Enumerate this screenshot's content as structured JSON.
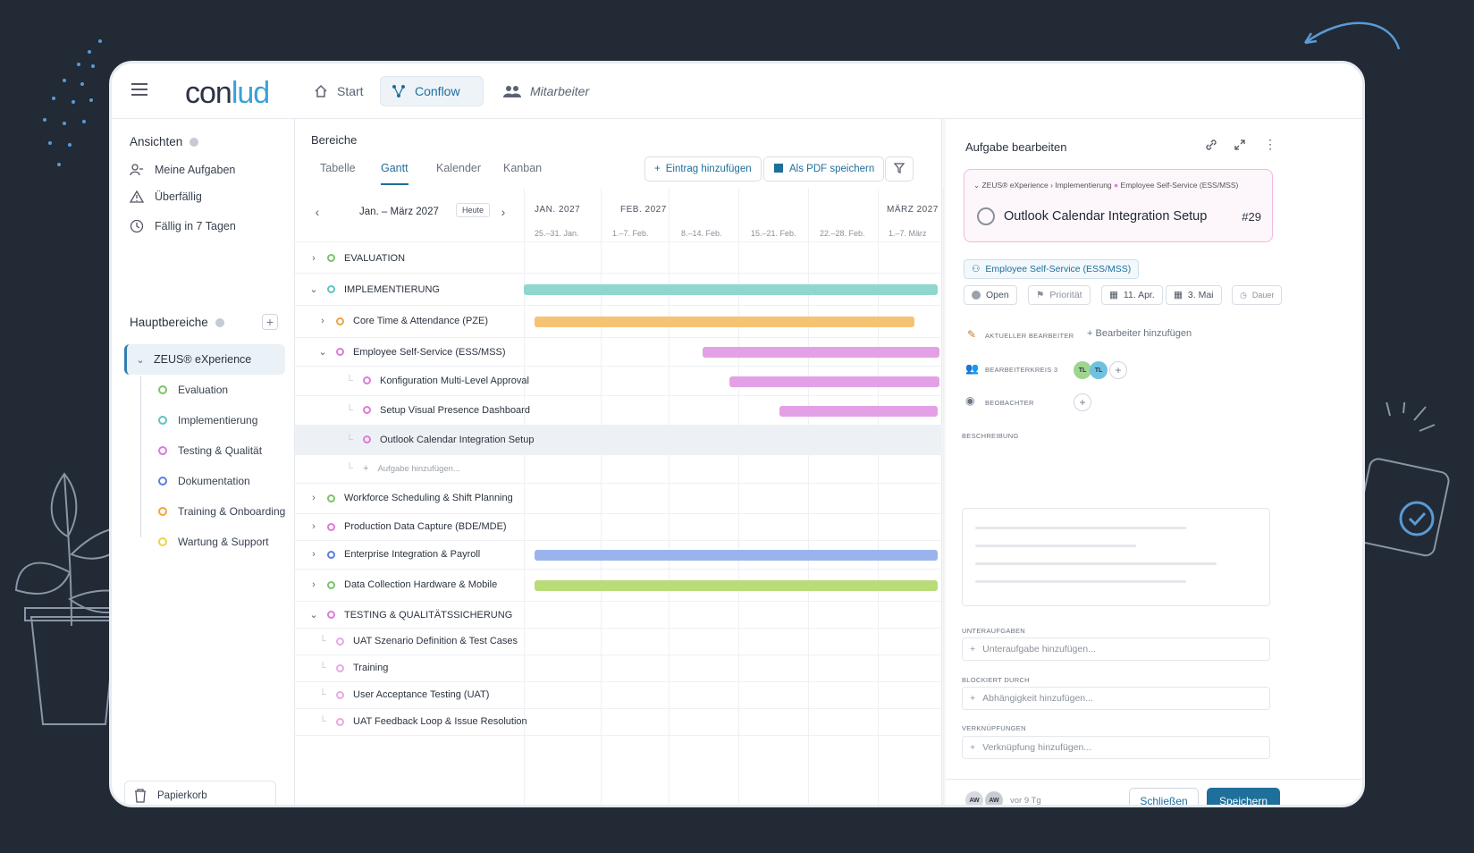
{
  "app": {
    "logo_prefix": "con",
    "logo_accent": "lud",
    "nav": {
      "start": "Start",
      "conflow": "Conflow",
      "mitarbeiter": "Mitarbeiter"
    }
  },
  "sidebar": {
    "ansichten_title": "Ansichten",
    "views": [
      "Meine Aufgaben",
      "Überfällig",
      "Fällig in 7 Tagen"
    ],
    "hauptbereiche_title": "Hauptbereiche",
    "zeus": "ZEUS® eXperience",
    "areas": [
      {
        "label": "Evaluation",
        "color": "#7cc36a"
      },
      {
        "label": "Implementierung",
        "color": "#5ec4c0"
      },
      {
        "label": "Testing & Qualität",
        "color": "#e07ad8"
      },
      {
        "label": "Dokumentation",
        "color": "#5b7fe0"
      },
      {
        "label": "Training & Onboarding",
        "color": "#f2a444"
      },
      {
        "label": "Wartung & Support",
        "color": "#f0d04a"
      }
    ],
    "trash": "Papierkorb"
  },
  "main": {
    "title": "Bereiche",
    "tabs": [
      "Tabelle",
      "Gantt",
      "Kalender",
      "Kanban"
    ],
    "add_entry": "Eintrag hinzufügen",
    "save_pdf": "Als PDF speichern",
    "range": "Jan. – März 2027",
    "today": "Heute",
    "months": [
      "JAN. 2027",
      "FEB. 2027",
      "MÄRZ 2027"
    ],
    "weeks": [
      "25.–31. Jan.",
      "1.–7. Feb.",
      "8.–14. Feb.",
      "15.–21. Feb.",
      "22.–28. Feb.",
      "1.–7. März"
    ],
    "rows": [
      {
        "label": "EVALUATION",
        "chev": "›",
        "color": "#7cc36a",
        "indent": 0
      },
      {
        "label": "IMPLEMENTIERUNG",
        "chev": "⌄",
        "color": "#5ec4c0",
        "indent": 0
      },
      {
        "label": "Core Time & Attendance (PZE)",
        "chev": "›",
        "color": "#f2a444",
        "indent": 1
      },
      {
        "label": "Employee Self-Service (ESS/MSS)",
        "chev": "⌄",
        "color": "#e07ad8",
        "indent": 1
      },
      {
        "label": "Konfiguration Multi-Level Approval",
        "chev": "",
        "color": "#e07ad8",
        "indent": 2
      },
      {
        "label": "Setup Visual Presence Dashboard",
        "chev": "",
        "color": "#e07ad8",
        "indent": 2
      },
      {
        "label": "Outlook Calendar Integration Setup",
        "chev": "",
        "color": "#e07ad8",
        "indent": 2
      },
      {
        "label": "Aufgabe hinzufügen...",
        "chev": "",
        "color": "",
        "indent": 2
      },
      {
        "label": "Workforce Scheduling & Shift Planning",
        "chev": "›",
        "color": "#7cc36a",
        "indent": 0
      },
      {
        "label": "Production Data Capture (BDE/MDE)",
        "chev": "›",
        "color": "#e07ad8",
        "indent": 0
      },
      {
        "label": "Enterprise Integration & Payroll",
        "chev": "›",
        "color": "#5b7fe0",
        "indent": 0
      },
      {
        "label": "Data Collection Hardware & Mobile",
        "chev": "›",
        "color": "#7cc36a",
        "indent": 0
      },
      {
        "label": "TESTING & QUALITÄTSSICHERUNG",
        "chev": "⌄",
        "color": "#e07ad8",
        "indent": 0
      },
      {
        "label": "UAT Szenario Definition & Test Cases",
        "chev": "",
        "color": "#e9a8e4",
        "indent": 1
      },
      {
        "label": "Training",
        "chev": "",
        "color": "#e9a8e4",
        "indent": 1
      },
      {
        "label": "User Acceptance Testing (UAT)",
        "chev": "",
        "color": "#e9a8e4",
        "indent": 1
      },
      {
        "label": "UAT Feedback Loop & Issue Resolution",
        "chev": "",
        "color": "#e9a8e4",
        "indent": 1
      }
    ]
  },
  "panel": {
    "title": "Aufgabe bearbeiten",
    "breadcrumb": [
      "ZEUS® eXperience",
      "Implementierung",
      "Employee Self-Service (ESS/MSS)"
    ],
    "task_title": "Outlook Calendar Integration Setup",
    "task_number": "#29",
    "area_tag": "Employee Self-Service (ESS/MSS)",
    "status": "Open",
    "priority": "Priorität",
    "start_date": "11. Apr.",
    "end_date": "3. Mai",
    "duration": "Dauer",
    "current_assignee_label": "AKTUELLER BEARBEITER",
    "add_assignee": "Bearbeiter hinzufügen",
    "team_label": "BEARBEITERKREIS",
    "team_count": "3",
    "team_avatars": [
      "TL",
      "TL"
    ],
    "watchers_label": "BEOBACHTER",
    "description_label": "BESCHREIBUNG",
    "subtasks_label": "UNTERAUFGABEN",
    "add_subtask": "Unteraufgabe hinzufügen...",
    "blocked_label": "BLOCKIERT DURCH",
    "add_dependency": "Abhängigkeit hinzufügen...",
    "links_label": "VERKNÜPFUNGEN",
    "add_link": "Verknüpfung hinzufügen...",
    "footer_avatars": [
      "AW",
      "AW"
    ],
    "timestamp": "vor 9 Tg",
    "close": "Schließen",
    "save": "Speichern"
  }
}
